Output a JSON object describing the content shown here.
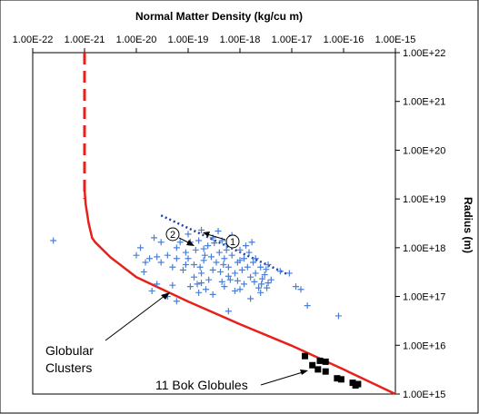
{
  "chart_data": {
    "type": "scatter",
    "title": "",
    "xlabel": "Normal Matter Density (kg/cu m)",
    "ylabel": "Radius (m)",
    "x_scale": "log",
    "y_scale": "log",
    "xlim": [
      1e-22,
      1e-15
    ],
    "ylim": [
      1000000000000000.0,
      1e+22
    ],
    "x_position": "top",
    "y_position": "right",
    "grid": false,
    "x_tick_labels": [
      "1.00E-22",
      "1.00E-21",
      "1.00E-20",
      "1.00E-19",
      "1.00E-18",
      "1.00E-17",
      "1.00E-16",
      "1.00E-15"
    ],
    "y_tick_labels": [
      "1.00E+22",
      "1.00E+21",
      "1.00E+20",
      "1.00E+19",
      "1.00E+18",
      "1.00E+17",
      "1.00E+16",
      "1.00E+15"
    ],
    "series": [
      {
        "style": "dashed-line",
        "color": "#e8201a",
        "points": [
          [
            1e-21,
            1e+22
          ],
          [
            1e-21,
            1e+19
          ]
        ]
      },
      {
        "style": "solid-line",
        "color": "#e8201a",
        "points": [
          [
            1e-21,
            1.6e+19
          ],
          [
            1.05e-21,
            7.9e+18
          ],
          [
            1.2e-21,
            3.2e+18
          ],
          [
            1.4e-21,
            1.6e+18
          ],
          [
            1.6e-21,
            1.3e+18
          ],
          [
            3.2e-21,
            6.3e+17
          ],
          [
            1e-20,
            2.5e+17
          ],
          [
            1e-19,
            7.9e+16
          ],
          [
            1e-18,
            2.7e+16
          ],
          [
            1e-17,
            9800000000000000.0
          ],
          [
            1e-16,
            3200000000000000.0
          ],
          [
            1e-15,
            1000000000000000.0
          ]
        ]
      },
      {
        "style": "dotted-line",
        "color": "#1f3fa8",
        "points": [
          [
            3e-20,
            4.6e+18
          ],
          [
            8e-18,
            2.9e+17
          ]
        ]
      },
      {
        "style": "plus-markers",
        "color": "#4a7fd8",
        "points": [
          [
            2.5e-22,
            1.4e+18
          ],
          [
            2e-20,
            1.3e+17
          ],
          [
            3e-20,
            5e+17
          ],
          [
            1e-20,
            7e+17
          ],
          [
            1.2e-20,
            1e+18
          ],
          [
            5e-20,
            1.7e+17
          ],
          [
            6e-20,
            8e+16
          ],
          [
            1e-19,
            6e+17
          ],
          [
            1.3e-19,
            2.5e+17
          ],
          [
            1.5e-19,
            1.8e+17
          ],
          [
            2e-19,
            5.5e+17
          ],
          [
            2.5e-19,
            2.2e+17
          ],
          [
            1.1e-19,
            1.6e+17
          ],
          [
            8e-20,
            3.5e+17
          ],
          [
            9e-20,
            8e+17
          ],
          [
            1.4e-19,
            9e+17
          ],
          [
            1.7e-19,
            4e+17
          ],
          [
            2.1e-19,
            7e+17
          ],
          [
            2.4e-19,
            1.1e+18
          ],
          [
            3e-19,
            3.5e+17
          ],
          [
            3.5e-19,
            5e+17
          ],
          [
            4e-19,
            8e+17
          ],
          [
            4.5e-19,
            2e+17
          ],
          [
            5e-19,
            6e+17
          ],
          [
            5.5e-19,
            1.2e+18
          ],
          [
            6e-19,
            4e+17
          ],
          [
            7e-19,
            7e+17
          ],
          [
            8e-19,
            3e+17
          ],
          [
            9e-19,
            5e+17
          ],
          [
            1e-18,
            9e+17
          ],
          [
            1.2e-18,
            6e+17
          ],
          [
            1.4e-18,
            4e+17
          ],
          [
            1.6e-18,
            2.5e+17
          ],
          [
            1.8e-18,
            5e+17
          ],
          [
            2e-18,
            3e+17
          ],
          [
            2.3e-18,
            1.5e+17
          ],
          [
            2.6e-18,
            1.8e+17
          ],
          [
            3e-18,
            2.8e+17
          ],
          [
            3.3e-18,
            1.5e+17
          ],
          [
            4e-18,
            2.2e+17
          ],
          [
            1.6e-19,
            1.2e+17
          ],
          [
            2.2e-19,
            1.4e+17
          ],
          [
            3e-19,
            1.1e+17
          ],
          [
            5e-19,
            1.6e+17
          ],
          [
            8e-19,
            1.3e+17
          ],
          [
            1.2e-18,
            1.8e+17
          ],
          [
            6e-19,
            2.6e+17
          ],
          [
            9e-19,
            2.1e+17
          ],
          [
            1.5e-18,
            8e+17
          ],
          [
            2e-18,
            6e+17
          ],
          [
            2.5e-18,
            4e+17
          ],
          [
            1.3e-18,
            1.1e+18
          ],
          [
            7e-19,
            1.1e+18
          ],
          [
            4.5e-19,
            1.4e+18
          ],
          [
            3e-19,
            1.6e+18
          ],
          [
            1.6e-19,
            1.4e+18
          ],
          [
            2.5e-20,
            6.5e+17
          ],
          [
            1.5e-20,
            5e+17
          ],
          [
            1.8e-20,
            6e+17
          ],
          [
            4e-20,
            7e+17
          ],
          [
            7e-20,
            1.3e+18
          ],
          [
            1e-19,
            1.9e+18
          ],
          [
            1.8e-19,
            2.3e+18
          ],
          [
            3.8e-19,
            2.2e+18
          ],
          [
            7e-19,
            1.8e+18
          ],
          [
            4e-20,
            1e+17
          ],
          [
            1.4e-20,
            3.2e+17
          ],
          [
            3.5e-18,
            4.5e+17
          ],
          [
            1.5e-17,
            1.4e+17
          ],
          [
            2e-17,
            6.5e+16
          ],
          [
            1.2e-17,
            1.6e+17
          ],
          [
            8e-17,
            4e+16
          ],
          [
            9e-18,
            3e+17
          ],
          [
            6e-18,
            3.3e+17
          ],
          [
            3e-20,
            1.3e+18
          ],
          [
            6e-20,
            1e+18
          ],
          [
            2.2e-20,
            1.6e+18
          ],
          [
            1.1e-19,
            1.3e+18
          ],
          [
            2.8e-19,
            6.5e+17
          ],
          [
            5.5e-19,
            9e+17
          ],
          [
            1.1e-18,
            3.5e+17
          ],
          [
            1.9e-18,
            2e+17
          ],
          [
            6e-20,
            6e+17
          ],
          [
            9e-20,
            4.5e+17
          ],
          [
            1.3e-19,
            4.5e+17
          ],
          [
            1.8e-19,
            3e+17
          ],
          [
            4.2e-19,
            3.2e+17
          ],
          [
            6.5e-19,
            2.2e+17
          ],
          [
            3.2e-18,
            3.6e+17
          ],
          [
            2.7e-18,
            2.3e+17
          ],
          [
            1e-18,
            1.4e+17
          ],
          [
            1.8e-19,
            1.9e+17
          ],
          [
            2.5e-20,
            1.8e+17
          ],
          [
            5e-20,
            4e+17
          ],
          [
            2e-19,
            9.5e+17
          ],
          [
            3.2e-19,
            1.25e+18
          ],
          [
            8e-19,
            1.3e+18
          ],
          [
            1.7e-18,
            1.3e+18
          ],
          [
            1e-18,
            5.5e+17
          ],
          [
            4.8e-19,
            4.5e+17
          ],
          [
            3.5e-18,
            1.9e+17
          ],
          [
            2.5e-18,
            1.2e+17
          ],
          [
            1.6e-18,
            9e+16
          ],
          [
            6e-19,
            5e+16
          ]
        ]
      },
      {
        "style": "square-markers",
        "color": "#000000",
        "points": [
          [
            1.8e-17,
            6000000000000000.0
          ],
          [
            2.5e-17,
            3900000000000000.0
          ],
          [
            3.5e-17,
            4800000000000000.0
          ],
          [
            4.5e-17,
            4600000000000000.0
          ],
          [
            3.2e-17,
            3200000000000000.0
          ],
          [
            4.5e-17,
            2900000000000000.0
          ],
          [
            7.5e-17,
            2100000000000000.0
          ],
          [
            9e-17,
            2000000000000000.0
          ],
          [
            1.5e-16,
            1700000000000000.0
          ],
          [
            1.7e-16,
            1500000000000000.0
          ],
          [
            1.9e-16,
            1600000000000000.0
          ]
        ]
      }
    ],
    "annotations": [
      {
        "text": "Globular",
        "target": [
          8e-20,
          1.5e+17
        ]
      },
      {
        "text": "Clusters",
        "target": [
          8e-20,
          1.5e+17
        ]
      },
      {
        "text": "11 Bok Globules",
        "target": [
          2.5e-17,
          4200000000000000.0
        ]
      },
      {
        "text": "1",
        "target": [
          1.3e-19,
          2.3e+18
        ]
      },
      {
        "text": "2",
        "target": [
          1.8e-19,
          1.3e+18
        ]
      }
    ]
  }
}
